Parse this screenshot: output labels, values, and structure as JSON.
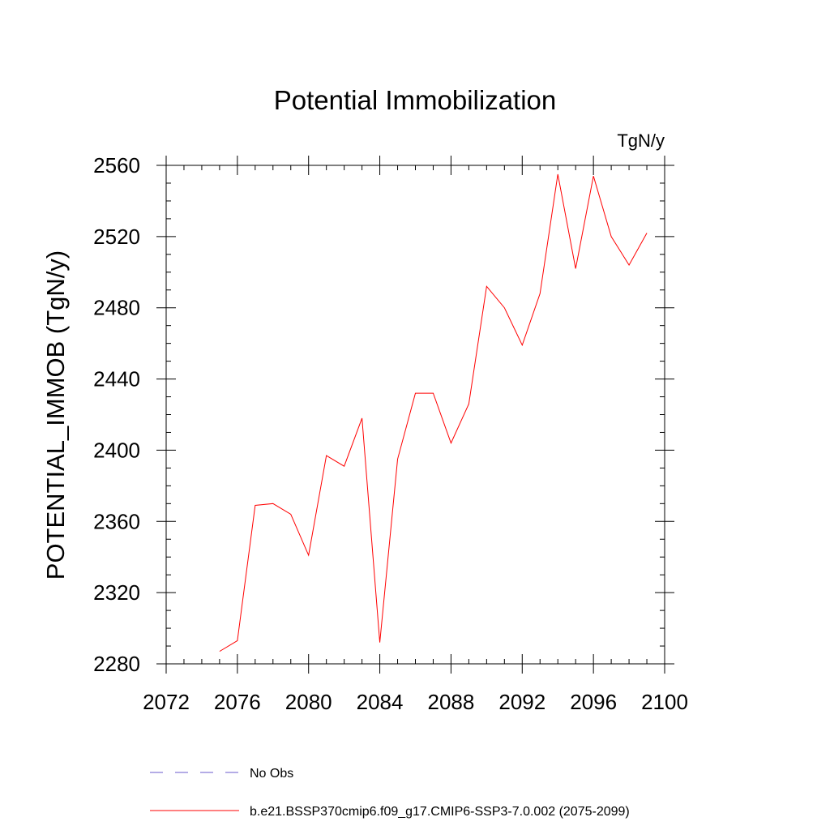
{
  "chart_data": {
    "type": "line",
    "title": "Potential Immobilization",
    "units_label": "TgN/y",
    "ylabel": "POTENTIAL_IMMOB  (TgN/y)",
    "xlabel": "",
    "xlim": [
      2072,
      2100
    ],
    "ylim": [
      2280,
      2560
    ],
    "x_ticks": [
      2072,
      2076,
      2080,
      2084,
      2088,
      2092,
      2096,
      2100
    ],
    "y_ticks": [
      2280,
      2320,
      2360,
      2400,
      2440,
      2480,
      2520,
      2560
    ],
    "x_tick_labels": [
      "2072",
      "2076",
      "2080",
      "2084",
      "2088",
      "2092",
      "2096",
      "2100"
    ],
    "y_tick_labels": [
      "2280",
      "2320",
      "2360",
      "2400",
      "2440",
      "2480",
      "2520",
      "2560"
    ],
    "grid": false,
    "legend_position": "bottom",
    "series": [
      {
        "name": "b.e21.BSSP370cmip6.f09_g17.CMIP6-SSP3-7.0.002 (2075-2099)",
        "color": "#ff0000",
        "style": "solid",
        "x": [
          2075,
          2076,
          2077,
          2078,
          2079,
          2080,
          2081,
          2082,
          2083,
          2084,
          2085,
          2086,
          2087,
          2088,
          2089,
          2090,
          2091,
          2092,
          2093,
          2094,
          2095,
          2096,
          2097,
          2098,
          2099
        ],
        "values": [
          2287,
          2293,
          2369,
          2370,
          2364,
          2341,
          2397,
          2391,
          2418,
          2292,
          2395,
          2432,
          2432,
          2404,
          2426,
          2492,
          2480,
          2459,
          2488,
          2555,
          2502,
          2554,
          2520,
          2504,
          2522
        ]
      },
      {
        "name": "No Obs",
        "color": "#6a5acd",
        "style": "dashed",
        "x": [],
        "values": []
      }
    ]
  }
}
